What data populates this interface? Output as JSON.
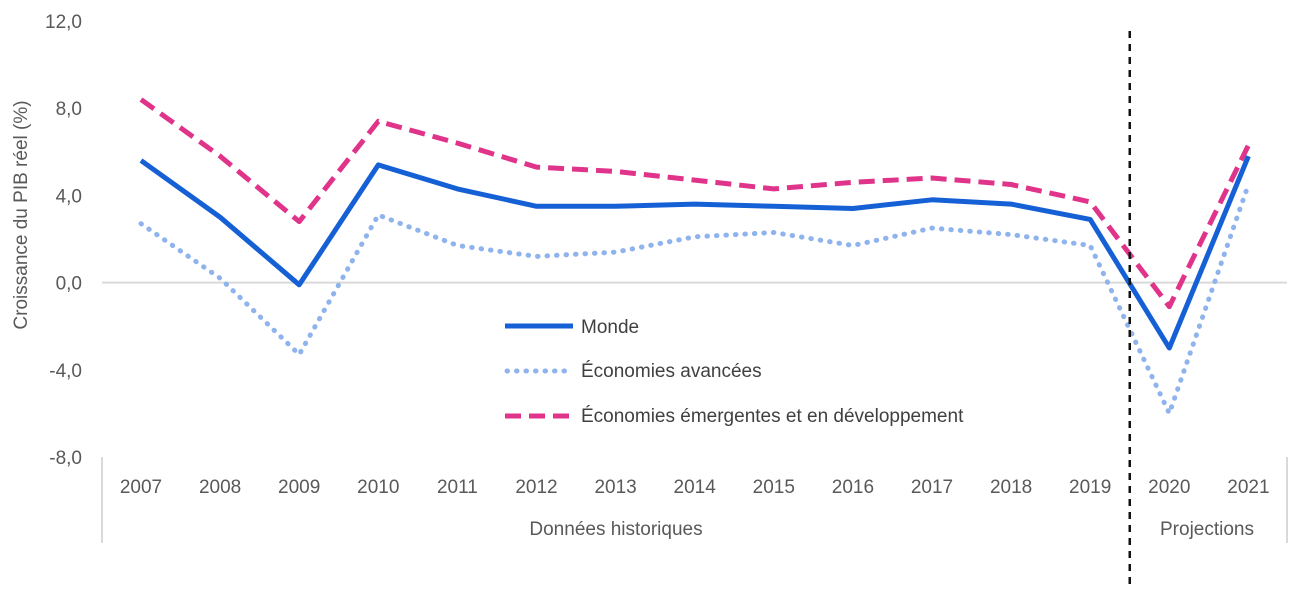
{
  "chart_data": {
    "type": "line",
    "xlabel": "",
    "ylabel": "Croissance du PIB réel (%)",
    "ylim": [
      -8,
      12
    ],
    "yticks": [
      12,
      8,
      4,
      0,
      -4,
      -8
    ],
    "ytick_labels": [
      "12,0",
      "8,0",
      "4,0",
      "0,0",
      "-4,0",
      "-8,0"
    ],
    "categories": [
      "2007",
      "2008",
      "2009",
      "2010",
      "2011",
      "2012",
      "2013",
      "2014",
      "2015",
      "2016",
      "2017",
      "2018",
      "2019",
      "2020",
      "2021"
    ],
    "groups": [
      {
        "label": "Données historiques",
        "categories": [
          "2007",
          "2008",
          "2009",
          "2010",
          "2011",
          "2012",
          "2013",
          "2014",
          "2015",
          "2016",
          "2017",
          "2018",
          "2019"
        ]
      },
      {
        "label": "Projections",
        "categories": [
          "2020",
          "2021"
        ]
      }
    ],
    "divider_after": "2019",
    "grid": false,
    "legend_position": "center",
    "series": [
      {
        "name": "Monde",
        "color": "#1560d4",
        "style": "solid",
        "values": [
          5.6,
          3.0,
          -0.1,
          5.4,
          4.3,
          3.5,
          3.5,
          3.6,
          3.5,
          3.4,
          3.8,
          3.6,
          2.9,
          -3.0,
          5.8
        ]
      },
      {
        "name": "Économies avancées",
        "color": "#8fb3ec",
        "style": "dotted",
        "values": [
          2.7,
          0.2,
          -3.3,
          3.1,
          1.7,
          1.2,
          1.4,
          2.1,
          2.3,
          1.7,
          2.5,
          2.2,
          1.7,
          -6.0,
          4.5
        ]
      },
      {
        "name": "Économies émergentes et en développement",
        "color": "#e0338a",
        "style": "dashed",
        "values": [
          8.4,
          5.8,
          2.8,
          7.4,
          6.4,
          5.3,
          5.1,
          4.7,
          4.3,
          4.6,
          4.8,
          4.5,
          3.7,
          -1.1,
          6.3
        ]
      }
    ]
  }
}
